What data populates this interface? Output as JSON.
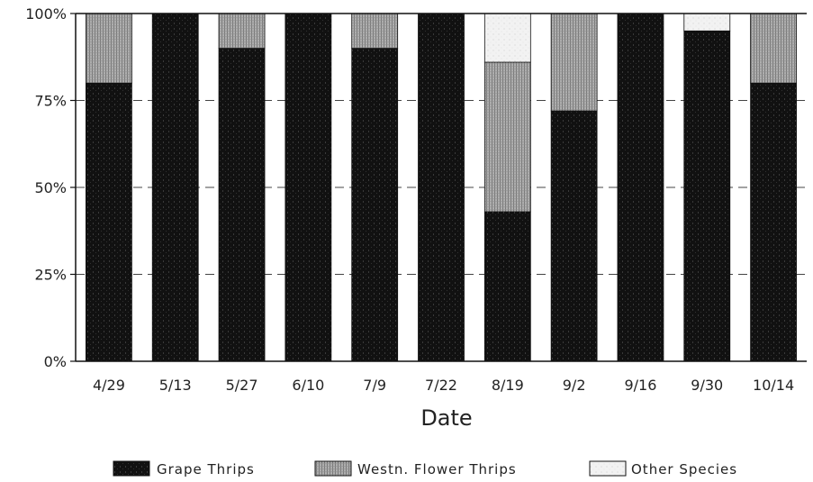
{
  "chart_data": {
    "type": "bar",
    "stacked": true,
    "percent_stacked": true,
    "categories": [
      "4/29",
      "5/13",
      "5/27",
      "6/10",
      "7/9",
      "7/22",
      "8/19",
      "9/2",
      "9/16",
      "9/30",
      "10/14"
    ],
    "series": [
      {
        "name": "Grape Thrips",
        "values": [
          80,
          100,
          90,
          100,
          90,
          100,
          43,
          72,
          100,
          95,
          80
        ]
      },
      {
        "name": "Westn. Flower Thrips",
        "values": [
          20,
          0,
          10,
          0,
          10,
          0,
          43,
          28,
          0,
          0,
          20
        ]
      },
      {
        "name": "Other Species",
        "values": [
          0,
          0,
          0,
          0,
          0,
          0,
          14,
          0,
          0,
          5,
          0
        ]
      }
    ],
    "xlabel": "Date",
    "ylabel": "",
    "ylim": [
      0,
      100
    ],
    "yticks": [
      "0%",
      "25%",
      "50%",
      "75%",
      "100%"
    ],
    "grid": "horizontal dashed",
    "legend": "bottom",
    "colors": {
      "Grape Thrips": "#111111",
      "Westn. Flower Thrips": "#9a9a9a",
      "Other Species": "#ffffff"
    }
  }
}
